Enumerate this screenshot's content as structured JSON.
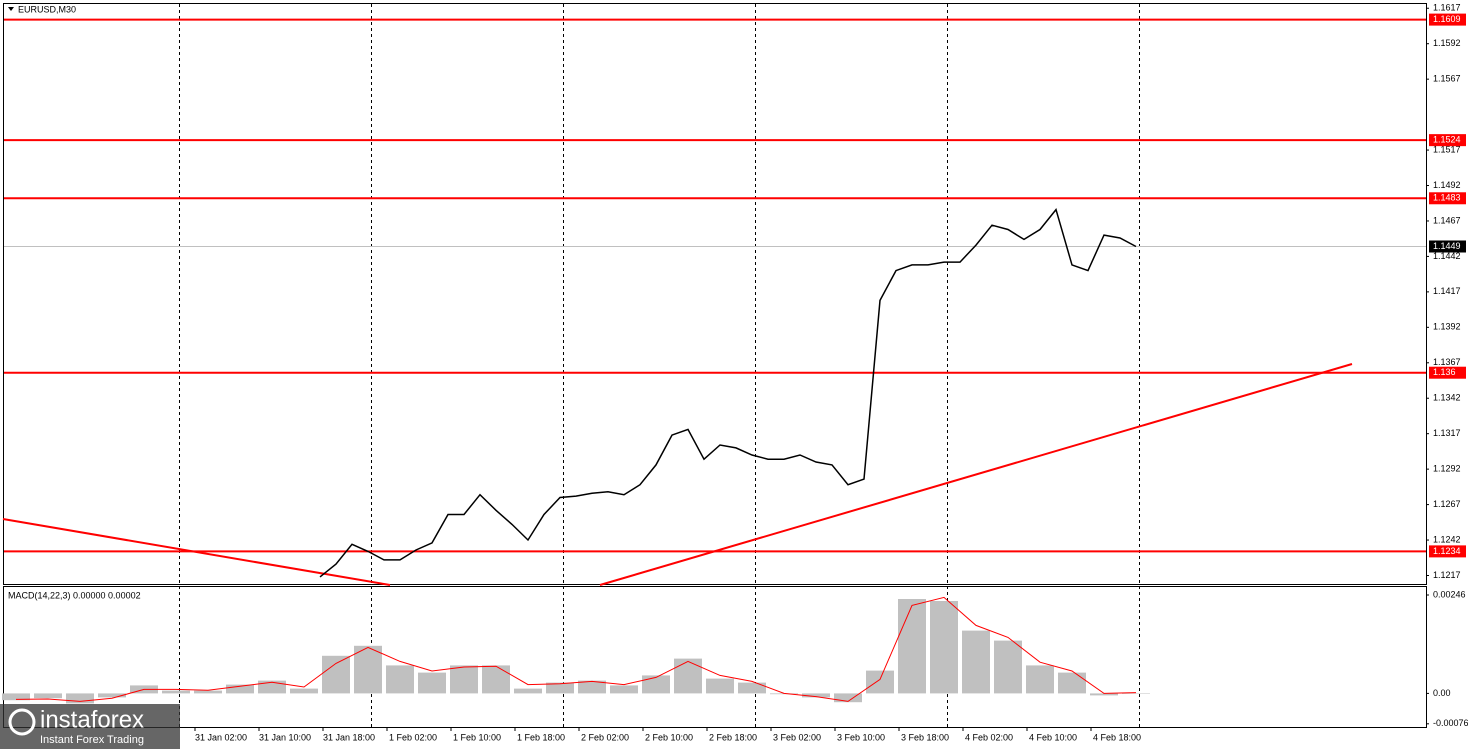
{
  "chart_data": [
    {
      "type": "line",
      "title": "EURUSD,M30",
      "color": "#000000",
      "level_color": "#ff0000",
      "values": [
        1.1216,
        1.1225,
        1.1239,
        1.1234,
        1.1228,
        1.1228,
        1.1235,
        1.124,
        1.126,
        1.126,
        1.1274,
        1.1263,
        1.1253,
        1.1242,
        1.126,
        1.1272,
        1.1273,
        1.1275,
        1.1276,
        1.1274,
        1.1281,
        1.1295,
        1.1316,
        1.132,
        1.1299,
        1.1309,
        1.1307,
        1.1302,
        1.1299,
        1.1299,
        1.1302,
        1.1297,
        1.1295,
        1.1281,
        1.1285,
        1.1411,
        1.1432,
        1.1436,
        1.1436,
        1.1438,
        1.1438,
        1.145,
        1.1464,
        1.1461,
        1.1454,
        1.1461,
        1.1475,
        1.1436,
        1.1432,
        1.1457,
        1.1455,
        1.1449
      ],
      "ylim": [
        1.1211,
        1.162
      ],
      "yticks": [
        1.1617,
        1.1592,
        1.1567,
        1.1517,
        1.1492,
        1.1467,
        1.1442,
        1.1417,
        1.1392,
        1.1367,
        1.1342,
        1.1317,
        1.1292,
        1.1267,
        1.1242,
        1.1217
      ],
      "levels": [
        1.1609,
        1.1524,
        1.1483,
        1.136,
        1.1234
      ],
      "current": 1.1449
    },
    {
      "type": "bar",
      "title": "MACD(14,22,3) 0.00000 0.00002",
      "color": "#c0c0c0",
      "signal_color": "#ff0000",
      "values": [
        -0.00017,
        -0.00012,
        -0.00025,
        -0.0001,
        0.0002,
        7e-05,
        7e-05,
        0.00022,
        0.00032,
        0.00012,
        0.00094,
        0.00119,
        0.0007,
        0.00052,
        0.0007,
        0.0007,
        0.00012,
        0.00027,
        0.00032,
        0.0002,
        0.00045,
        0.00087,
        0.00037,
        0.00027,
        -2e-05,
        -0.0001,
        -0.00022,
        0.00057,
        0.00236,
        0.00231,
        0.00157,
        0.00132,
        0.0007,
        0.00052,
        -5e-05,
        0.0
      ],
      "signal": [
        -0.00015,
        -0.00014,
        -0.0002,
        -0.00012,
        0.0001,
        0.0001,
        8e-05,
        0.00018,
        0.00028,
        0.00016,
        0.00075,
        0.00115,
        0.0008,
        0.00056,
        0.00066,
        0.00068,
        0.00022,
        0.00024,
        0.0003,
        0.00022,
        0.0004,
        0.0008,
        0.00045,
        0.0003,
        0.0,
        -8e-05,
        -0.0002,
        0.00035,
        0.0022,
        0.0024,
        0.0017,
        0.0014,
        0.00078,
        0.00056,
        0.0,
        2e-05
      ],
      "ylim": [
        -0.00084,
        0.00266
      ],
      "yticks": [
        0.00246,
        {
          "value": 0,
          "label": "0.00"
        },
        -0.00076
      ]
    }
  ],
  "time_labels": [
    "31 Jan 02:00",
    "31 Jan 10:00",
    "31 Jan 18:00",
    "1 Feb 02:00",
    "1 Feb 10:00",
    "1 Feb 18:00",
    "2 Feb 02:00",
    "2 Feb 10:00",
    "2 Feb 18:00",
    "3 Feb 02:00",
    "3 Feb 10:00",
    "3 Feb 18:00",
    "4 Feb 02:00",
    "4 Feb 10:00",
    "4 Feb 18:00"
  ],
  "brand": {
    "name": "instaforex",
    "tagline": "Instant Forex Trading"
  }
}
